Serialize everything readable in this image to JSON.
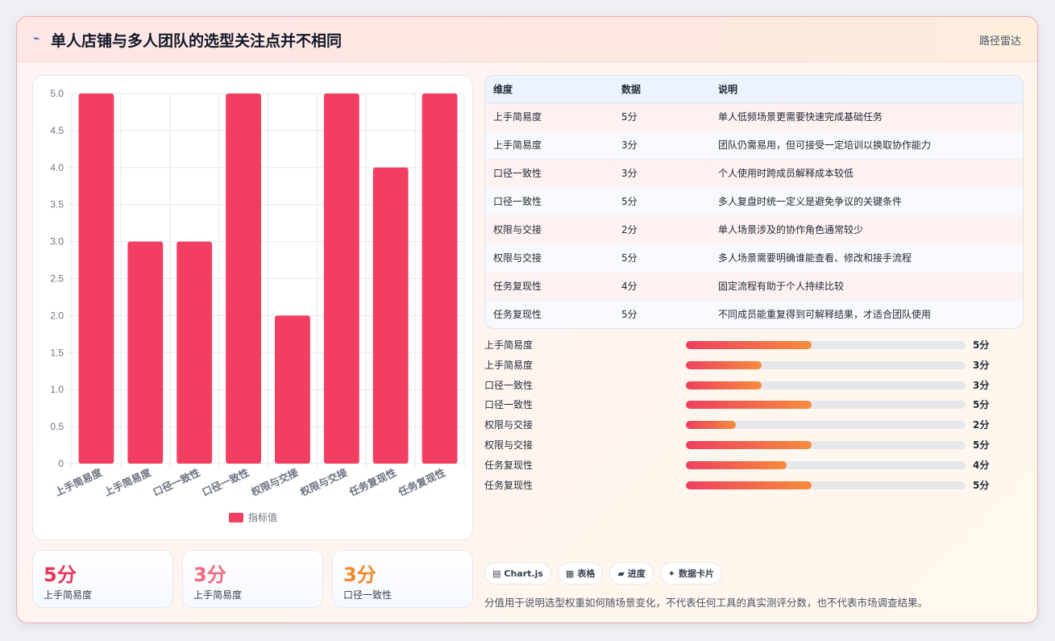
{
  "header": {
    "title": "单人店铺与多人团队的选型关注点并不相同",
    "route_label": "路径雷达"
  },
  "chart_data": {
    "type": "bar",
    "categories": [
      "上手简易度",
      "上手简易度",
      "口径一致性",
      "口径一致性",
      "权限与交接",
      "权限与交接",
      "任务复现性",
      "任务复现性"
    ],
    "series": [
      {
        "name": "指标值",
        "values": [
          5,
          3,
          3,
          5,
          2,
          5,
          4,
          5
        ]
      }
    ],
    "ylim": [
      0,
      5
    ],
    "yticks": [
      "0",
      "0.5",
      "1.0",
      "1.5",
      "2.0",
      "2.5",
      "3.0",
      "3.5",
      "4.0",
      "4.5",
      "5.0"
    ],
    "grid": true,
    "legend": "bottom",
    "color": "#f23f61"
  },
  "stat_cards": [
    {
      "value": "5分",
      "label": "上手简易度",
      "color": "#e8385a"
    },
    {
      "value": "3分",
      "label": "上手简易度",
      "color": "#ef6b7d"
    },
    {
      "value": "3分",
      "label": "口径一致性",
      "color": "#f08a2c"
    }
  ],
  "table": {
    "headers": [
      "维度",
      "数据",
      "说明"
    ],
    "rows": [
      [
        "上手简易度",
        "5分",
        "单人低频场景更需要快速完成基础任务"
      ],
      [
        "上手简易度",
        "3分",
        "团队仍需易用，但可接受一定培训以换取协作能力"
      ],
      [
        "口径一致性",
        "3分",
        "个人使用时跨成员解释成本较低"
      ],
      [
        "口径一致性",
        "5分",
        "多人复盘时统一定义是避免争议的关键条件"
      ],
      [
        "权限与交接",
        "2分",
        "单人场景涉及的协作角色通常较少"
      ],
      [
        "权限与交接",
        "5分",
        "多人场景需要明确谁能查看、修改和接手流程"
      ],
      [
        "任务复现性",
        "4分",
        "固定流程有助于个人持续比较"
      ],
      [
        "任务复现性",
        "5分",
        "不同成员能重复得到可解释结果，才适合团队使用"
      ]
    ]
  },
  "progress": [
    {
      "label": "上手简易度",
      "score": "5分",
      "fraction": 0.45
    },
    {
      "label": "上手简易度",
      "score": "3分",
      "fraction": 0.27
    },
    {
      "label": "口径一致性",
      "score": "3分",
      "fraction": 0.27
    },
    {
      "label": "口径一致性",
      "score": "5分",
      "fraction": 0.45
    },
    {
      "label": "权限与交接",
      "score": "2分",
      "fraction": 0.18
    },
    {
      "label": "权限与交接",
      "score": "5分",
      "fraction": 0.45
    },
    {
      "label": "任务复现性",
      "score": "4分",
      "fraction": 0.36
    },
    {
      "label": "任务复现性",
      "score": "5分",
      "fraction": 0.45
    }
  ],
  "chips": [
    {
      "icon": "▤",
      "label": "Chart.js",
      "icon_name": "chart-icon"
    },
    {
      "icon": "▦",
      "label": "表格",
      "icon_name": "table-icon"
    },
    {
      "icon": "▰",
      "label": "进度",
      "icon_name": "progress-icon"
    },
    {
      "icon": "✦",
      "label": "数据卡片",
      "icon_name": "sparkle-icon"
    }
  ],
  "note": "分值用于说明选型权重如何随场景变化，不代表任何工具的真实测评分数，也不代表市场调查结果。"
}
